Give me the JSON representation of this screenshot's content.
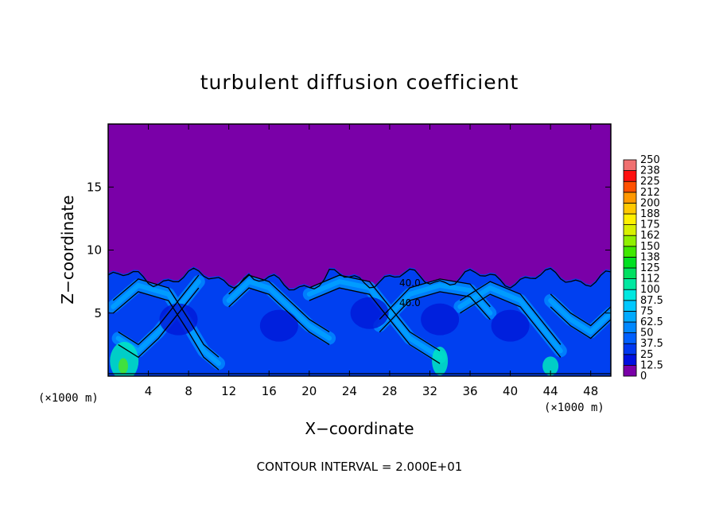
{
  "chart_data": {
    "type": "heatmap",
    "title": "turbulent diffusion coefficient",
    "xlabel": "X−coordinate",
    "ylabel": "Z−coordinate",
    "x_unit_left": "(×1000 m)",
    "x_unit_right": "(×1000 m)",
    "xlim": [
      0,
      50
    ],
    "ylim": [
      0,
      20
    ],
    "xticks": [
      4,
      8,
      12,
      16,
      20,
      24,
      28,
      32,
      36,
      40,
      44,
      48
    ],
    "yticks": [
      5,
      10,
      15
    ],
    "colorbar": {
      "levels": [
        "0",
        "12.5",
        "25",
        "37.5",
        "50",
        "62.5",
        "75",
        "87.5",
        "100",
        "112",
        "125",
        "138",
        "150",
        "162",
        "175",
        "188",
        "200",
        "212",
        "225",
        "238",
        "250"
      ],
      "colors": [
        "#7a00a8",
        "#2a00c8",
        "#0010e0",
        "#0038f0",
        "#0060ff",
        "#0088ff",
        "#00aaff",
        "#00c8ff",
        "#00e8e0",
        "#00e8a0",
        "#00e060",
        "#00e020",
        "#40e800",
        "#90f000",
        "#d8f000",
        "#fff000",
        "#ffc800",
        "#ff9800",
        "#ff5000",
        "#ff1010",
        "#f07070"
      ]
    },
    "background_value": "0",
    "turbulent_layer_top": 8.3,
    "contour_labels": [
      "40.0",
      "40.0"
    ],
    "contour_interval_note": "CONTOUR INTERVAL = 2.000E+01"
  }
}
